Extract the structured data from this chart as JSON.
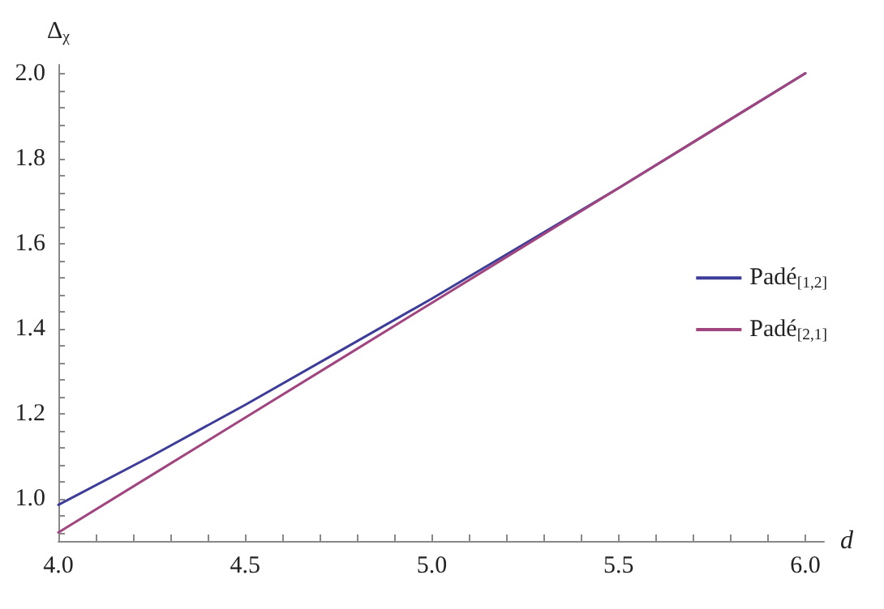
{
  "chart_data": {
    "type": "line",
    "xlabel": "d",
    "ylabel": "Δ$_{χ}$",
    "x": [
      4.0,
      4.25,
      4.5,
      4.75,
      5.0,
      5.25,
      5.5,
      5.75,
      6.0
    ],
    "series": [
      {
        "name": "Padé$_{[1,2]}$",
        "color": "#3d3d99",
        "values": [
          0.985,
          1.1,
          1.22,
          1.345,
          1.47,
          1.6,
          1.73,
          1.865,
          2.0
        ]
      },
      {
        "name": "Padé$_{[2,1]}$",
        "color": "#a0457f",
        "values": [
          0.92,
          1.055,
          1.19,
          1.325,
          1.46,
          1.595,
          1.73,
          1.865,
          2.0
        ]
      }
    ],
    "xlim": [
      4.0,
      6.05
    ],
    "ylim": [
      0.9,
      2.02
    ],
    "xticks": [
      {
        "value": 4.0,
        "label": "4.0"
      },
      {
        "value": 4.1,
        "label": null
      },
      {
        "value": 4.2,
        "label": null
      },
      {
        "value": 4.3,
        "label": null
      },
      {
        "value": 4.4,
        "label": null
      },
      {
        "value": 4.5,
        "label": "4.5"
      },
      {
        "value": 4.6,
        "label": null
      },
      {
        "value": 4.7,
        "label": null
      },
      {
        "value": 4.8,
        "label": null
      },
      {
        "value": 4.9,
        "label": null
      },
      {
        "value": 5.0,
        "label": "5.0"
      },
      {
        "value": 5.1,
        "label": null
      },
      {
        "value": 5.2,
        "label": null
      },
      {
        "value": 5.3,
        "label": null
      },
      {
        "value": 5.4,
        "label": null
      },
      {
        "value": 5.5,
        "label": "5.5"
      },
      {
        "value": 5.6,
        "label": null
      },
      {
        "value": 5.7,
        "label": null
      },
      {
        "value": 5.8,
        "label": null
      },
      {
        "value": 5.9,
        "label": null
      },
      {
        "value": 6.0,
        "label": "6.0"
      }
    ],
    "yticks": [
      {
        "value": 0.92,
        "label": null
      },
      {
        "value": 0.96,
        "label": null
      },
      {
        "value": 1.0,
        "label": "1.0"
      },
      {
        "value": 1.04,
        "label": null
      },
      {
        "value": 1.08,
        "label": null
      },
      {
        "value": 1.12,
        "label": null
      },
      {
        "value": 1.16,
        "label": null
      },
      {
        "value": 1.2,
        "label": "1.2"
      },
      {
        "value": 1.24,
        "label": null
      },
      {
        "value": 1.28,
        "label": null
      },
      {
        "value": 1.32,
        "label": null
      },
      {
        "value": 1.36,
        "label": null
      },
      {
        "value": 1.4,
        "label": "1.4"
      },
      {
        "value": 1.44,
        "label": null
      },
      {
        "value": 1.48,
        "label": null
      },
      {
        "value": 1.52,
        "label": null
      },
      {
        "value": 1.56,
        "label": null
      },
      {
        "value": 1.6,
        "label": "1.6"
      },
      {
        "value": 1.64,
        "label": null
      },
      {
        "value": 1.68,
        "label": null
      },
      {
        "value": 1.72,
        "label": null
      },
      {
        "value": 1.76,
        "label": null
      },
      {
        "value": 1.8,
        "label": "1.8"
      },
      {
        "value": 1.84,
        "label": null
      },
      {
        "value": 1.88,
        "label": null
      },
      {
        "value": 1.92,
        "label": null
      },
      {
        "value": 1.96,
        "label": null
      },
      {
        "value": 2.0,
        "label": "2.0"
      }
    ],
    "grid": false,
    "legend": "right",
    "marker": "none",
    "line_style": "solid"
  }
}
